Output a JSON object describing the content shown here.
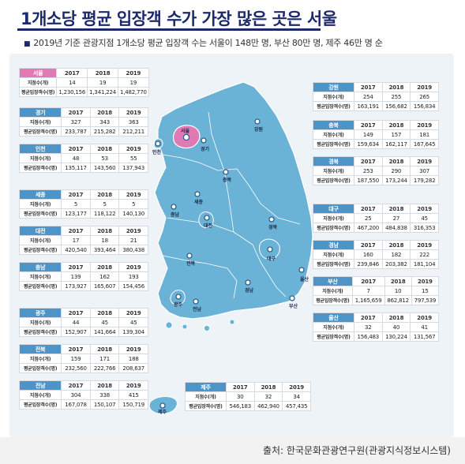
{
  "title": "1개소당 평균 입장객 수가 가장 많은 곳은 서울",
  "subtitle": "2019년 기준 관광지점 1개소당 평균 입장객 수는 서울이 148만 명, 부산 80만 명, 제주 46만 명 순",
  "source": "출처: 한국문화관광연구원(관광지식정보시스템)",
  "table_header": {
    "years": [
      "2017",
      "2018",
      "2019"
    ],
    "row_sites": "지점수(개)",
    "row_avg": "평균입장객수(명)"
  },
  "colors": {
    "map_fill": "#6bb3d6",
    "seoul_fill": "#e07ab5",
    "region_header": "#4d95c8",
    "title": "#1c2a6b"
  },
  "regions": [
    {
      "id": "seoul",
      "name": "서울",
      "sites": [
        "14",
        "19",
        "19"
      ],
      "avg": [
        "1,230,156",
        "1,341,224",
        "1,482,770"
      ]
    },
    {
      "id": "gyeonggi",
      "name": "경기",
      "sites": [
        "327",
        "343",
        "363"
      ],
      "avg": [
        "233,787",
        "215,282",
        "212,211"
      ]
    },
    {
      "id": "incheon",
      "name": "인천",
      "sites": [
        "48",
        "53",
        "55"
      ],
      "avg": [
        "135,117",
        "143,560",
        "137,943"
      ]
    },
    {
      "id": "sejong",
      "name": "세종",
      "sites": [
        "5",
        "5",
        "5"
      ],
      "avg": [
        "123,177",
        "118,122",
        "140,130"
      ]
    },
    {
      "id": "daejeon",
      "name": "대전",
      "sites": [
        "17",
        "18",
        "21"
      ],
      "avg": [
        "420,540",
        "393,464",
        "380,438"
      ]
    },
    {
      "id": "chungnam",
      "name": "충남",
      "sites": [
        "139",
        "162",
        "193"
      ],
      "avg": [
        "173,927",
        "165,607",
        "154,456"
      ]
    },
    {
      "id": "gwangju",
      "name": "광주",
      "sites": [
        "44",
        "45",
        "45"
      ],
      "avg": [
        "152,907",
        "141,664",
        "139,304"
      ]
    },
    {
      "id": "jeonbuk",
      "name": "전북",
      "sites": [
        "159",
        "171",
        "188"
      ],
      "avg": [
        "232,560",
        "222,766",
        "208,637"
      ]
    },
    {
      "id": "jeonnam",
      "name": "전남",
      "sites": [
        "304",
        "338",
        "415"
      ],
      "avg": [
        "167,078",
        "150,107",
        "150,719"
      ]
    },
    {
      "id": "jeju",
      "name": "제주",
      "sites": [
        "30",
        "32",
        "34"
      ],
      "avg": [
        "546,183",
        "462,940",
        "457,435"
      ]
    },
    {
      "id": "gangwon",
      "name": "강원",
      "sites": [
        "254",
        "255",
        "265"
      ],
      "avg": [
        "163,191",
        "156,682",
        "156,834"
      ]
    },
    {
      "id": "chungbuk",
      "name": "충북",
      "sites": [
        "149",
        "157",
        "181"
      ],
      "avg": [
        "159,634",
        "162,117",
        "167,645"
      ]
    },
    {
      "id": "gyeongbuk",
      "name": "경북",
      "sites": [
        "253",
        "290",
        "307"
      ],
      "avg": [
        "187,550",
        "173,244",
        "179,282"
      ]
    },
    {
      "id": "daegu",
      "name": "대구",
      "sites": [
        "25",
        "27",
        "45"
      ],
      "avg": [
        "467,200",
        "484,838",
        "316,353"
      ]
    },
    {
      "id": "gyeongnam",
      "name": "경남",
      "sites": [
        "160",
        "182",
        "222"
      ],
      "avg": [
        "239,846",
        "203,382",
        "181,104"
      ]
    },
    {
      "id": "busan",
      "name": "부산",
      "sites": [
        "7",
        "10",
        "15"
      ],
      "avg": [
        "1,165,659",
        "862,812",
        "797,539"
      ]
    },
    {
      "id": "ulsan",
      "name": "울산",
      "sites": [
        "32",
        "40",
        "41"
      ],
      "avg": [
        "156,483",
        "130,224",
        "131,567"
      ]
    }
  ],
  "map_labels": {
    "seoul": "서울",
    "incheon": "인천",
    "gyeonggi": "경기",
    "gangwon": "강원",
    "chungbuk": "충북",
    "sejong": "세종",
    "chungnam": "충남",
    "daejeon": "대전",
    "gyeongbuk": "경북",
    "daegu": "대구",
    "jeonbuk": "전북",
    "ulsan": "울산",
    "gyeongnam": "경남",
    "gwangju": "광주",
    "jeonnam": "전남",
    "busan": "부산",
    "jeju": "제주"
  }
}
